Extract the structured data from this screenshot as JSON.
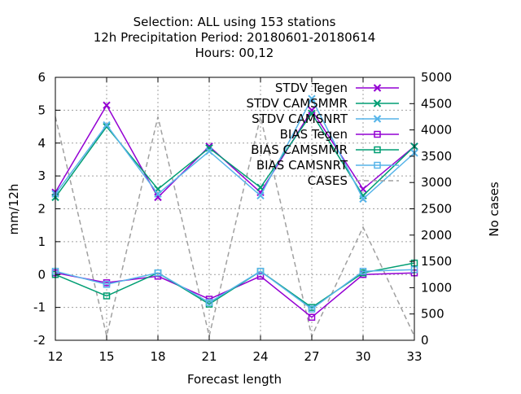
{
  "chart_data": {
    "type": "line",
    "title_lines": [
      "Selection: ALL using   153 stations",
      "12h Precipitation   Period: 20180601-20180614",
      "Hours:  00,12"
    ],
    "xlabel": "Forecast length",
    "ylabel": "mm/12h",
    "y2label": "No cases",
    "x": [
      12,
      15,
      18,
      21,
      24,
      27,
      30,
      33
    ],
    "xticks": [
      "12",
      "15",
      "18",
      "21",
      "24",
      "27",
      "30",
      "33"
    ],
    "ylim": [
      -2,
      6
    ],
    "yticks": [
      "-2",
      "-1",
      "0",
      "1",
      "2",
      "3",
      "4",
      "5",
      "6"
    ],
    "y2lim": [
      0,
      5000
    ],
    "y2ticks": [
      "0",
      "500",
      "1000",
      "1500",
      "2000",
      "2500",
      "3000",
      "3500",
      "4000",
      "4500",
      "5000"
    ],
    "grid": true,
    "legend_position": "top-right",
    "series": [
      {
        "name": "STDV Tegen",
        "axis": "y",
        "color": "#9400d3",
        "marker": "x",
        "dash": false,
        "values": [
          2.5,
          5.15,
          2.35,
          3.9,
          2.5,
          5.0,
          2.6,
          3.9
        ]
      },
      {
        "name": "STDV CAMSMMR",
        "axis": "y",
        "color": "#009e73",
        "marker": "x",
        "dash": false,
        "values": [
          2.35,
          4.5,
          2.6,
          3.85,
          2.65,
          4.9,
          2.4,
          3.9
        ]
      },
      {
        "name": "STDV CAMSNRT",
        "axis": "y",
        "color": "#56b4e9",
        "marker": "x",
        "dash": false,
        "values": [
          2.45,
          4.55,
          2.45,
          3.75,
          2.4,
          5.35,
          2.3,
          3.7
        ]
      },
      {
        "name": "BIAS Tegen",
        "axis": "y",
        "color": "#9400d3",
        "marker": "square",
        "dash": false,
        "values": [
          0.05,
          -0.25,
          -0.05,
          -0.75,
          -0.05,
          -1.3,
          0.0,
          0.05
        ]
      },
      {
        "name": "BIAS CAMSMMR",
        "axis": "y",
        "color": "#009e73",
        "marker": "square",
        "dash": false,
        "values": [
          0.0,
          -0.65,
          0.05,
          -0.9,
          0.1,
          -1.0,
          0.05,
          0.35
        ]
      },
      {
        "name": "BIAS CAMSNRT",
        "axis": "y",
        "color": "#56b4e9",
        "marker": "square",
        "dash": false,
        "values": [
          0.1,
          -0.3,
          0.05,
          -0.85,
          0.1,
          -1.05,
          0.1,
          0.15
        ]
      },
      {
        "name": "CASES",
        "axis": "y2",
        "color": "#a0a0a0",
        "marker": "none",
        "dash": true,
        "values": [
          4250,
          80,
          4250,
          80,
          4250,
          80,
          2150,
          80
        ]
      }
    ]
  }
}
